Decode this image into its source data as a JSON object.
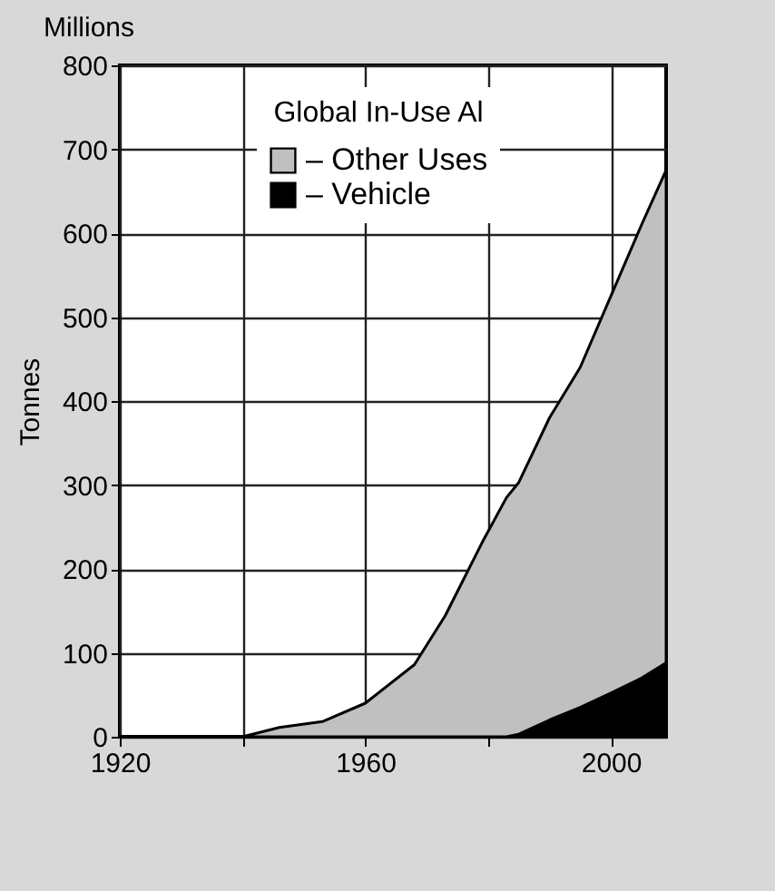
{
  "chart_data": {
    "type": "area",
    "stacked": true,
    "legend_title": "Global In-Use Al",
    "ylabel": "Tonnes",
    "annotations": [
      "Millions"
    ],
    "x": [
      1920,
      1940,
      1946,
      1953,
      1960,
      1968,
      1973,
      1979,
      1983,
      1985,
      1990,
      1995,
      2000,
      2005,
      2009
    ],
    "series": [
      {
        "name": "– Vehicle",
        "color": "#000000",
        "values": [
          0,
          0,
          0,
          0,
          0,
          0,
          0,
          0,
          0,
          3,
          20,
          35,
          52,
          70,
          88
        ]
      },
      {
        "name": "– Other Uses",
        "color": "#c0c0c0",
        "values": [
          0,
          0,
          11,
          18,
          40,
          86,
          144,
          231,
          285,
          300,
          360,
          405,
          473,
          540,
          587
        ]
      }
    ],
    "xlim": [
      1920,
      2009
    ],
    "xticks": [
      1920,
      {
        "value": 1940,
        "label": null
      },
      1960,
      {
        "value": 1980,
        "label": null
      },
      2000
    ],
    "ylim": [
      0,
      800
    ],
    "yticks": [
      0,
      100,
      200,
      300,
      400,
      500,
      600,
      700,
      800
    ],
    "grid": true,
    "legend": "top"
  }
}
